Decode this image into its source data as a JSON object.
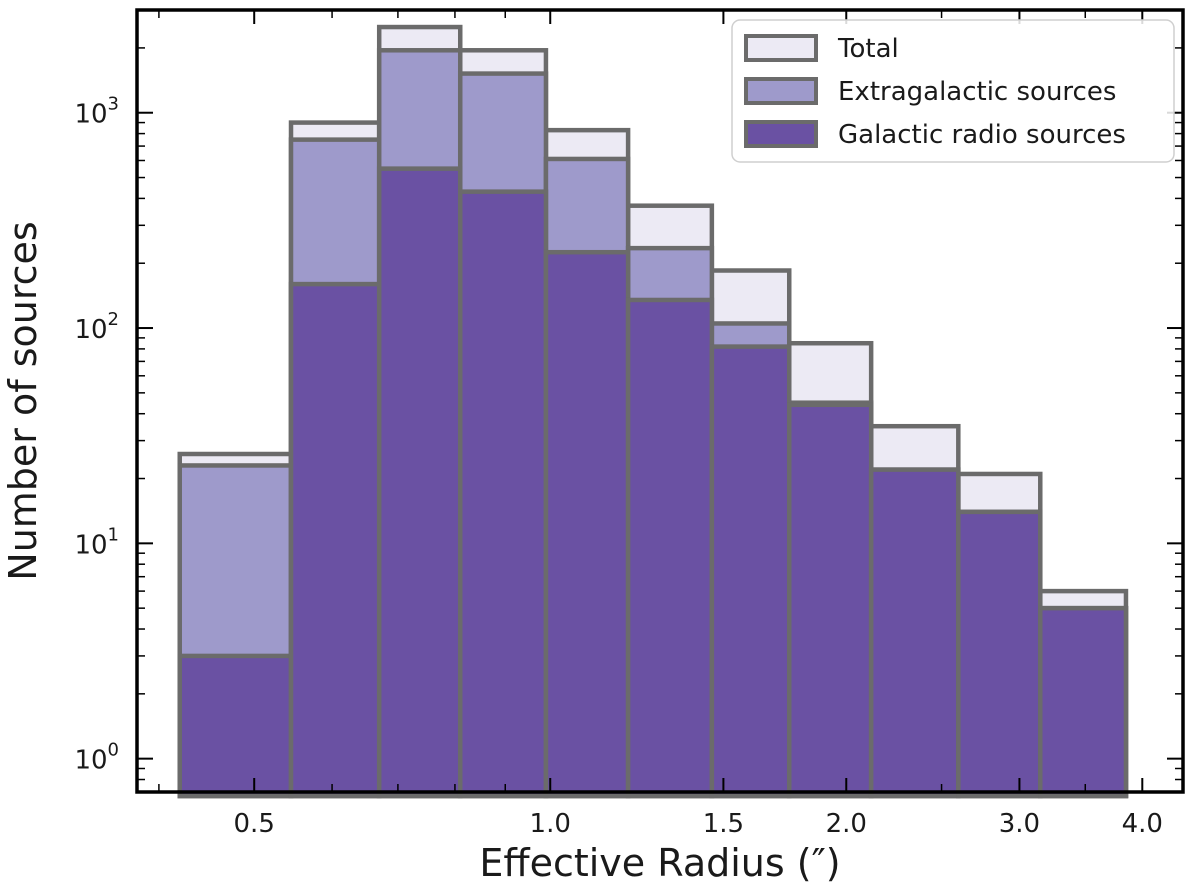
{
  "chart_data": {
    "type": "bar",
    "title": "",
    "xlabel": "Effective Radius (″)",
    "ylabel": "Number of sources",
    "x_scale": "log",
    "y_scale": "log",
    "xlim": [
      0.38,
      4.4
    ],
    "ylim": [
      0.7,
      3000
    ],
    "bin_edges": [
      0.42,
      0.545,
      0.67,
      0.81,
      0.99,
      1.2,
      1.46,
      1.75,
      2.12,
      2.6,
      3.15,
      3.85
    ],
    "series": [
      {
        "name": "Total",
        "color": "#eceaf4",
        "values": [
          26,
          900,
          2500,
          1950,
          830,
          370,
          185,
          85,
          35,
          21,
          6
        ]
      },
      {
        "name": "Extragalactic sources",
        "color": "#9e9acb",
        "values": [
          23,
          750,
          1950,
          1520,
          610,
          235,
          105,
          45,
          22,
          14,
          5
        ]
      },
      {
        "name": "Galactic radio sources",
        "color": "#6a51a3",
        "values": [
          3,
          160,
          550,
          430,
          225,
          135,
          82,
          44,
          22,
          14,
          5
        ]
      }
    ],
    "x_ticks": [
      {
        "value": 0.5,
        "label": "0.5"
      },
      {
        "value": 1.0,
        "label": "1.0"
      },
      {
        "value": 1.5,
        "label": "1.5"
      },
      {
        "value": 2.0,
        "label": "2.0"
      },
      {
        "value": 3.0,
        "label": "3.0"
      },
      {
        "value": 4.0,
        "label": "4.0"
      }
    ],
    "y_ticks": [
      {
        "value": 1,
        "base": "10",
        "exp": "0"
      },
      {
        "value": 10,
        "base": "10",
        "exp": "1"
      },
      {
        "value": 100,
        "base": "10",
        "exp": "2"
      },
      {
        "value": 1000,
        "base": "10",
        "exp": "3"
      }
    ],
    "edge_color": "#6b6b6b",
    "legend_position": "upper right",
    "grid": false
  }
}
